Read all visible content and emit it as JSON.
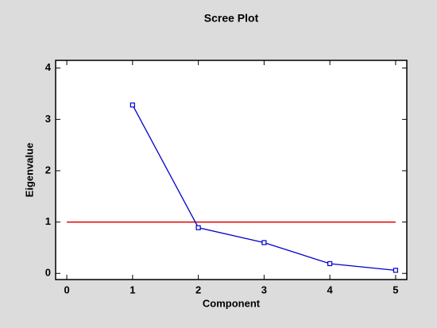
{
  "chart_data": {
    "type": "line",
    "title": "Scree Plot",
    "x_label": "Component",
    "y_label": "Eigenvalue",
    "x": [
      1,
      2,
      3,
      4,
      5
    ],
    "values": [
      3.28,
      0.89,
      0.6,
      0.19,
      0.06
    ],
    "color": "#0000cc",
    "marker": "square",
    "reference_line": {
      "value": 1,
      "color": "#dd0000"
    },
    "xlim": [
      -0.17,
      5.17
    ],
    "xticks": [
      0,
      1,
      2,
      3,
      4,
      5
    ],
    "ylim": [
      -0.12,
      4.15
    ],
    "yticks": [
      0,
      1,
      2,
      3,
      4
    ]
  }
}
